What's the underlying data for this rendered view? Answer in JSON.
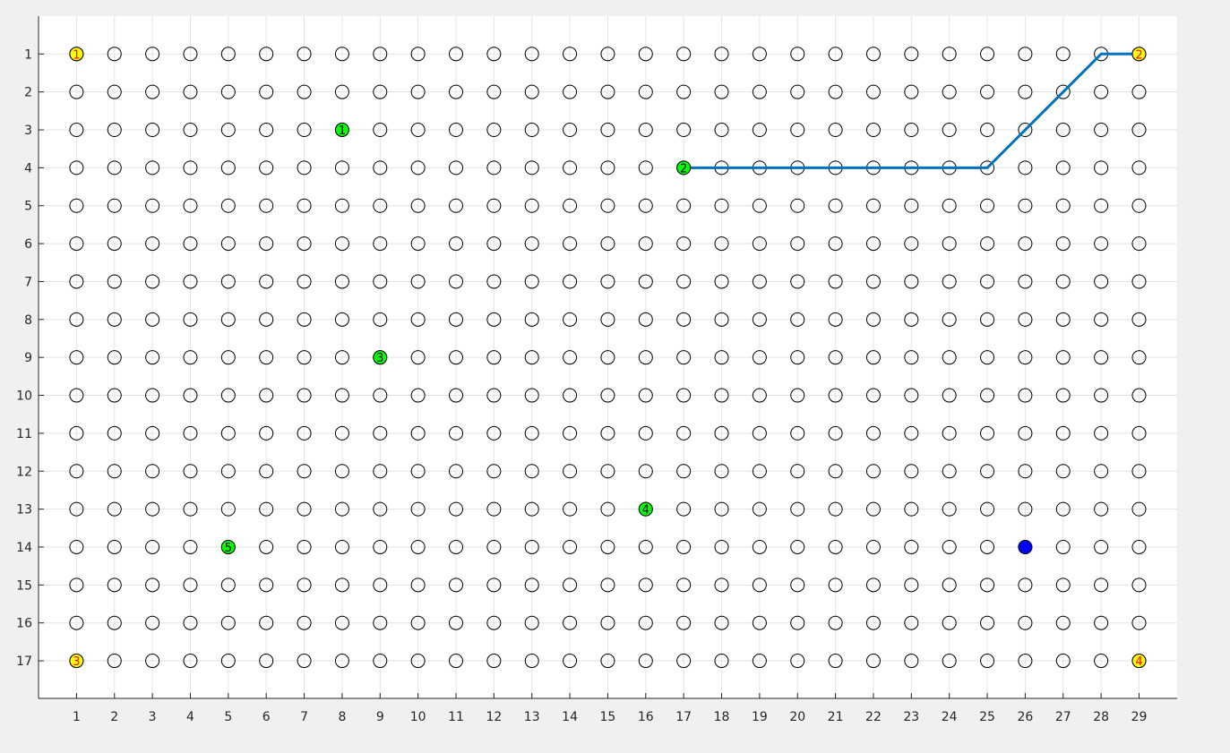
{
  "chart_data": {
    "type": "scatter",
    "title": "",
    "xlabel": "",
    "ylabel": "",
    "xlim": [
      0,
      30
    ],
    "ylim": [
      0,
      18
    ],
    "y_reversed": true,
    "grid": true,
    "grid_points": {
      "columns": 29,
      "rows": 17,
      "marker": "open-circle"
    },
    "x_ticks": [
      "1",
      "2",
      "3",
      "4",
      "5",
      "6",
      "7",
      "8",
      "9",
      "10",
      "11",
      "12",
      "13",
      "14",
      "15",
      "16",
      "17",
      "18",
      "19",
      "20",
      "21",
      "22",
      "23",
      "24",
      "25",
      "26",
      "27",
      "28",
      "29"
    ],
    "y_ticks": [
      "1",
      "2",
      "3",
      "4",
      "5",
      "6",
      "7",
      "8",
      "9",
      "10",
      "11",
      "12",
      "13",
      "14",
      "15",
      "16",
      "17"
    ],
    "series": [
      {
        "role": "yellow-markers",
        "color": "#ffff00",
        "label_color": "#ff0000",
        "points": [
          {
            "x": 1,
            "y": 1,
            "label": "1"
          },
          {
            "x": 29,
            "y": 1,
            "label": "2"
          },
          {
            "x": 1,
            "y": 17,
            "label": "3"
          },
          {
            "x": 29,
            "y": 17,
            "label": "4"
          }
        ]
      },
      {
        "role": "green-markers",
        "color": "#00ff00",
        "label_color": "#000000",
        "points": [
          {
            "x": 8,
            "y": 3,
            "label": "1"
          },
          {
            "x": 17,
            "y": 4,
            "label": "2"
          },
          {
            "x": 9,
            "y": 9,
            "label": "3"
          },
          {
            "x": 16,
            "y": 13,
            "label": "4"
          },
          {
            "x": 5,
            "y": 14,
            "label": "5"
          }
        ]
      },
      {
        "role": "blue-marker",
        "color": "#0000ff",
        "points": [
          {
            "x": 26,
            "y": 14
          }
        ]
      },
      {
        "role": "path",
        "type": "line",
        "color": "#0072bd",
        "points": [
          {
            "x": 17,
            "y": 4
          },
          {
            "x": 18,
            "y": 4
          },
          {
            "x": 19,
            "y": 4
          },
          {
            "x": 20,
            "y": 4
          },
          {
            "x": 21,
            "y": 4
          },
          {
            "x": 22,
            "y": 4
          },
          {
            "x": 23,
            "y": 4
          },
          {
            "x": 24,
            "y": 4
          },
          {
            "x": 25,
            "y": 4
          },
          {
            "x": 26,
            "y": 3
          },
          {
            "x": 27,
            "y": 2
          },
          {
            "x": 28,
            "y": 1
          },
          {
            "x": 29,
            "y": 1
          }
        ]
      }
    ]
  }
}
